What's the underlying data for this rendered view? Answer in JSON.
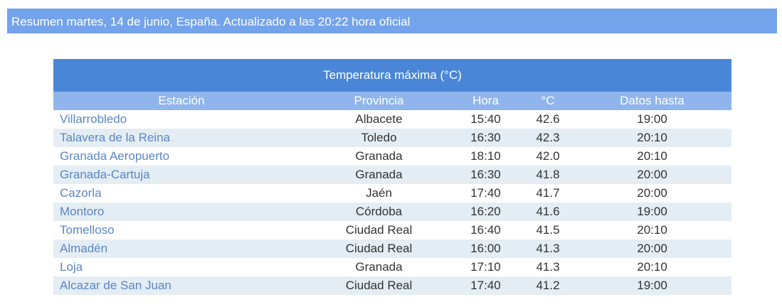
{
  "header": {
    "title": "Resumen martes, 14 de junio, España. Actualizado a las 20:22 hora oficial"
  },
  "table": {
    "title": "Temperatura máxima (°C)",
    "columns": [
      "Estación",
      "Provincia",
      "Hora",
      "°C",
      "Datos hasta"
    ],
    "rows": [
      [
        "Villarrobledo",
        "Albacete",
        "15:40",
        "42.6",
        "19:00"
      ],
      [
        "Talavera de la Reina",
        "Toledo",
        "16:30",
        "42.3",
        "20:10"
      ],
      [
        "Granada Aeropuerto",
        "Granada",
        "18:10",
        "42.0",
        "20:10"
      ],
      [
        "Granada-Cartuja",
        "Granada",
        "16:30",
        "41.8",
        "20:00"
      ],
      [
        "Cazorla",
        "Jaén",
        "17:40",
        "41.7",
        "20:00"
      ],
      [
        "Montoro",
        "Córdoba",
        "16:20",
        "41.6",
        "19:00"
      ],
      [
        "Tomelloso",
        "Ciudad Real",
        "16:40",
        "41.5",
        "20:10"
      ],
      [
        "Almadén",
        "Ciudad Real",
        "16:00",
        "41.3",
        "20:00"
      ],
      [
        "Loja",
        "Granada",
        "17:10",
        "41.3",
        "20:10"
      ],
      [
        "Alcazar de San Juan",
        "Ciudad Real",
        "17:40",
        "41.2",
        "19:00"
      ]
    ]
  }
}
